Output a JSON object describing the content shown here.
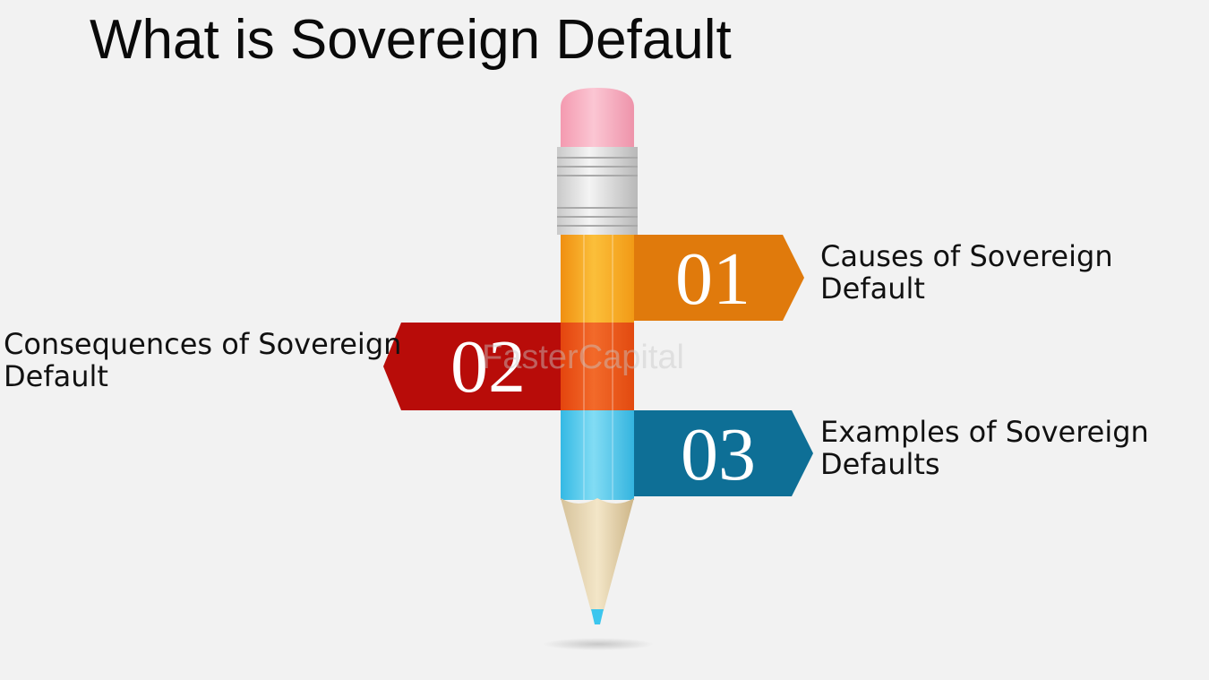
{
  "title": "What is Sovereign Default",
  "colors": {
    "background": "#f2f2f2",
    "item_01": "#e07a0c",
    "item_02": "#b80c09",
    "item_03": "#0e6f96",
    "eraser": "#f7aebf",
    "pencil_body_top": "#f7a51e",
    "pencil_body_bottom": "#45c8ec",
    "pencil_lead": "#3cc6ee"
  },
  "items": [
    {
      "number": "01",
      "line1": "Causes of Sovereign",
      "line2": "Default"
    },
    {
      "number": "02",
      "line1": "Consequences of Sovereign",
      "line2": "Default"
    },
    {
      "number": "03",
      "line1": "Examples of Sovereign",
      "line2": "Defaults"
    }
  ],
  "watermark": "FasterCapital"
}
